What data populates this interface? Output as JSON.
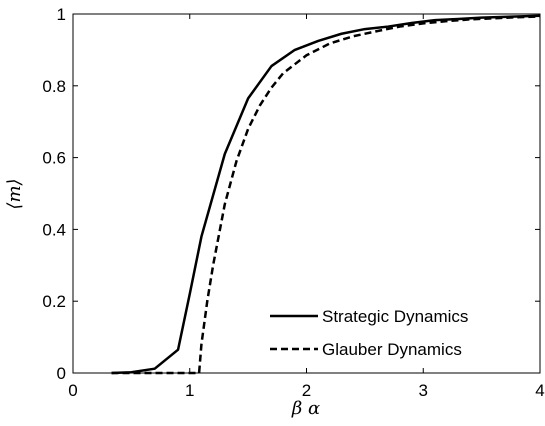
{
  "chart_data": {
    "type": "line",
    "xlabel": "β α",
    "ylabel": "⟨m⟩",
    "xlim": [
      0,
      4
    ],
    "ylim": [
      0,
      1
    ],
    "x_ticks": [
      "0",
      "1",
      "2",
      "3",
      "4"
    ],
    "y_ticks": [
      "0",
      "0.2",
      "0.4",
      "0.6",
      "0.8",
      "1"
    ],
    "grid": false,
    "legend_position": "lower-right",
    "series": [
      {
        "name": "Strategic Dynamics",
        "style": "solid",
        "color": "#000000",
        "x": [
          0.33,
          0.5,
          0.7,
          0.9,
          1.0,
          1.1,
          1.3,
          1.5,
          1.7,
          1.9,
          2.1,
          2.3,
          2.5,
          2.7,
          2.9,
          3.1,
          3.3,
          3.5,
          3.7,
          3.9,
          4.0
        ],
        "y": [
          0.0,
          0.002,
          0.012,
          0.065,
          0.22,
          0.38,
          0.61,
          0.765,
          0.855,
          0.9,
          0.925,
          0.945,
          0.958,
          0.965,
          0.975,
          0.983,
          0.986,
          0.99,
          0.992,
          0.994,
          0.995
        ]
      },
      {
        "name": "Glauber Dynamics",
        "style": "dashed",
        "color": "#000000",
        "x": [
          0.33,
          0.7,
          1.0,
          1.08,
          1.1,
          1.15,
          1.2,
          1.3,
          1.4,
          1.5,
          1.6,
          1.7,
          1.8,
          2.0,
          2.2,
          2.4,
          2.6,
          2.8,
          3.0,
          3.2,
          3.4,
          3.6,
          3.8,
          4.0
        ],
        "y": [
          0.0,
          0.0,
          0.0,
          0.0,
          0.08,
          0.2,
          0.3,
          0.47,
          0.59,
          0.68,
          0.745,
          0.795,
          0.835,
          0.885,
          0.918,
          0.938,
          0.952,
          0.965,
          0.974,
          0.98,
          0.985,
          0.988,
          0.991,
          0.993
        ]
      }
    ]
  }
}
